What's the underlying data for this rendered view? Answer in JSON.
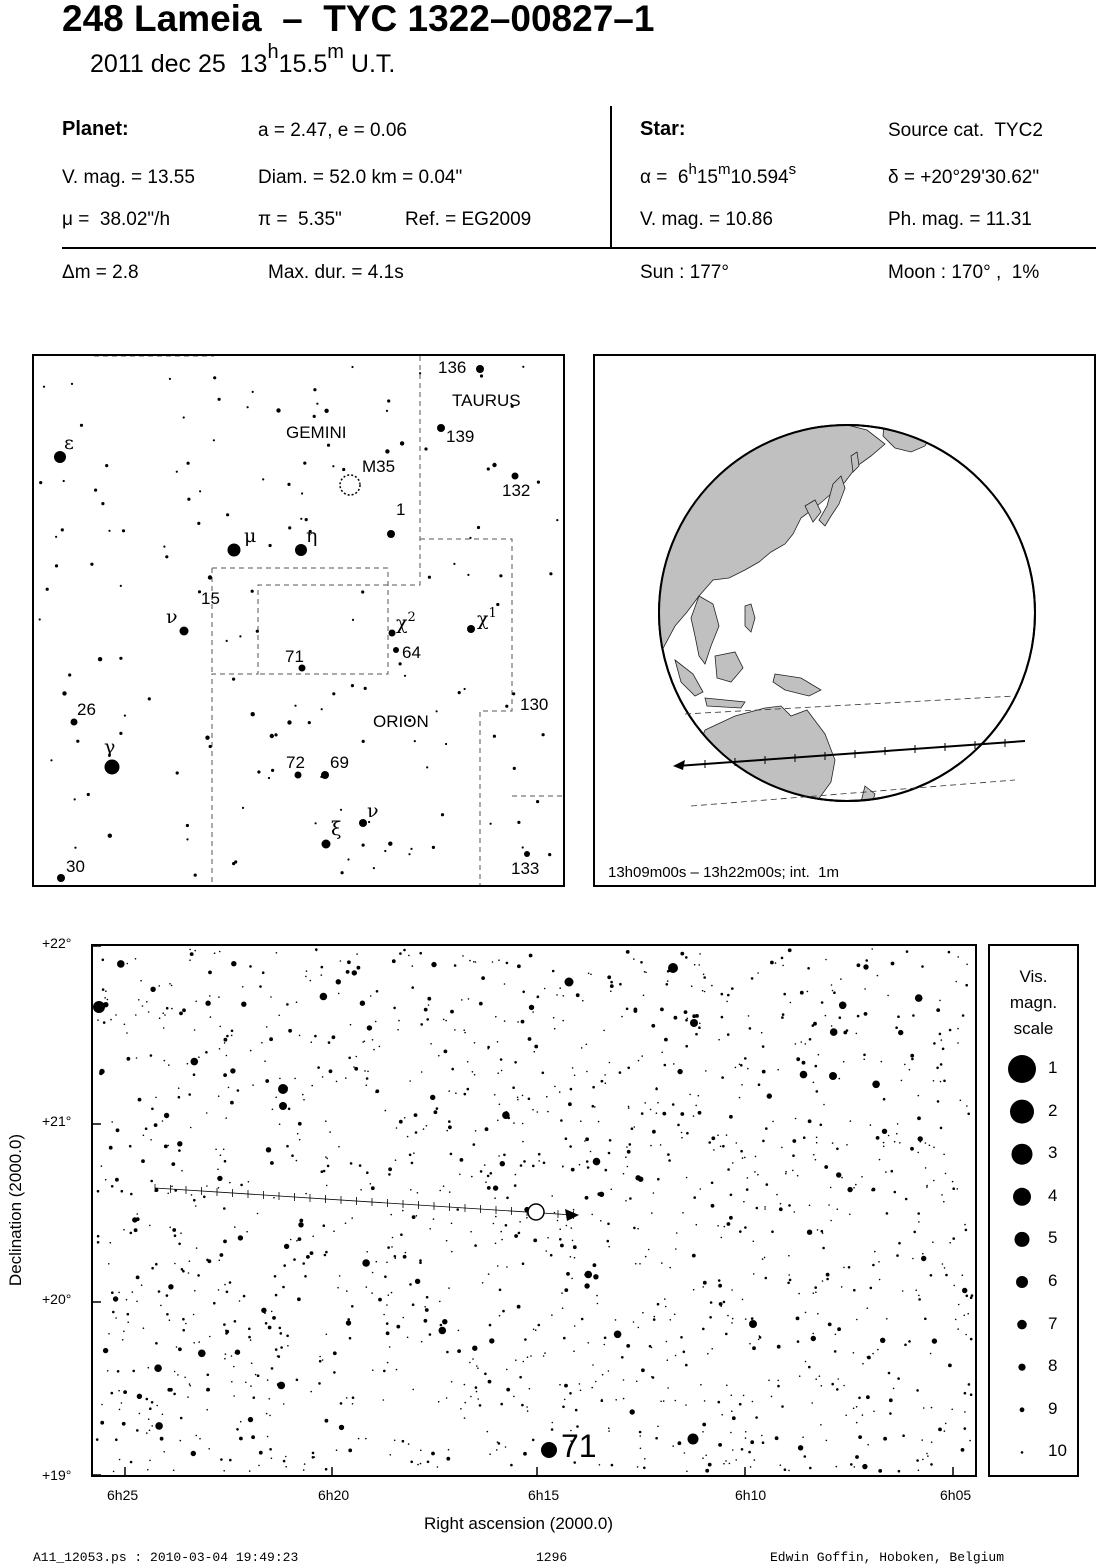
{
  "title": "248 Lameia  –  TYC 1322–00827–1",
  "subtitle": {
    "date": "2011 dec 25  13",
    "h": "h",
    "min": "15.5",
    "m": "m",
    "ut": " U.T."
  },
  "planet": {
    "heading": "Planet:",
    "a_e": "a = 2.47, e = 0.06",
    "vmag": "V. mag. = 13.55",
    "diam": "Diam. = 52.0 km = 0.04\"",
    "mu": "μ =  38.02\"/h",
    "pi": "π =  5.35\"",
    "ref": "Ref. = EG2009"
  },
  "star": {
    "heading": "Star:",
    "source": "Source cat.  TYC2",
    "alpha_pre": "α =  6",
    "alpha_h": "h",
    "alpha_mid": "15",
    "alpha_m": "m",
    "alpha_sec": "10.594",
    "alpha_s": "s",
    "delta": "δ = +20°29'30.62\"",
    "vmag": "V. mag. = 10.86",
    "phmag": "Ph. mag. = 11.31"
  },
  "event": {
    "dm": "Δm = 2.8",
    "maxdur": "Max. dur. = 4.1s",
    "sun": "Sun : 177°",
    "moon": "Moon : 170° ,  1%"
  },
  "finder": {
    "constellations": [
      "GEMINI",
      "TAURUS",
      "ORION"
    ],
    "labels": {
      "n136": "136",
      "n139": "139",
      "n132": "132",
      "n1": "1",
      "m35": "M35",
      "n15": "15",
      "n64": "64",
      "n71": "71",
      "n130": "130",
      "n26": "26",
      "n72": "72",
      "n69": "69",
      "n133": "133",
      "n30": "30"
    },
    "greek": {
      "epsilon": "ε",
      "mu": "μ",
      "eta": "η",
      "nu1": "ν",
      "chi2": "χ",
      "chi2_sup": "2",
      "chi1": "χ",
      "chi1_sup": "1",
      "gamma": "γ",
      "xi": "ξ",
      "nu2": "ν"
    }
  },
  "globe": {
    "caption": "13h09m00s – 13h22m00s; int.  1m",
    "colors": {
      "land": "#c0c0c0",
      "ocean": "#ffffff"
    }
  },
  "chart": {
    "ylabel": "Declination (2000.0)",
    "xlabel": "Right ascension (2000.0)",
    "yticks": [
      "+22°",
      "+21°",
      "+20°",
      "+19°"
    ],
    "xticks": [
      "6h25",
      "6h20",
      "6h15",
      "6h10",
      "6h05"
    ],
    "star_label": "71"
  },
  "scale": {
    "title_lines": [
      "Vis.",
      "magn.",
      "scale"
    ],
    "mags": [
      "1",
      "2",
      "3",
      "4",
      "5",
      "6",
      "7",
      "8",
      "9",
      "10"
    ]
  },
  "footer": {
    "file": "A11_12053.ps : 2010-03-04 19:49:23",
    "num": "1296",
    "author": "Edwin Goffin, Hoboken, Belgium"
  }
}
